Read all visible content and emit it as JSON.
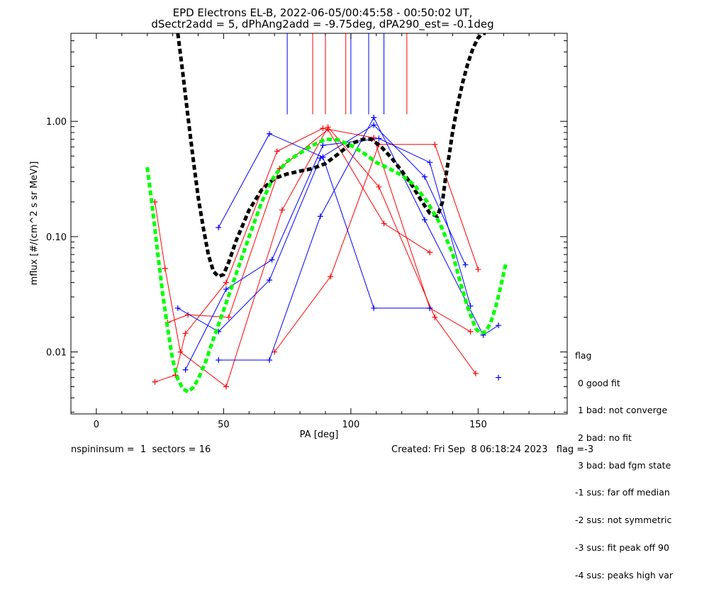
{
  "chart_data": {
    "type": "line",
    "title": "EPD Electrons EL-B, 2022-06-05/00:45:58 - 00:50:02 UT,",
    "subtitle": "dSectr2add = 5, dPhAng2add = -9.75deg, dPA290_est=  -0.1deg",
    "xlabel": "PA [deg]",
    "ylabel": "mflux [#/(cm^2 s sr MeV)]",
    "xlim": [
      -10,
      185
    ],
    "ylim": [
      0.0029,
      5.8
    ],
    "yscale": "log",
    "x_ticks": [
      0,
      50,
      100,
      150
    ],
    "x_tick_labels": [
      "0",
      "50",
      "100",
      "150"
    ],
    "y_ticks": [
      0.01,
      0.1,
      1.0
    ],
    "y_tick_labels": [
      "0.01",
      "0.10",
      "1.00"
    ],
    "grid": false,
    "colors": {
      "red": "#ff0000",
      "blue": "#0000ff",
      "black": "#000000",
      "green": "#00ff00"
    },
    "vertical_lines": {
      "top": 5.8,
      "bottom": 1.15,
      "red_x": [
        85,
        90,
        98,
        122
      ],
      "blue_x": [
        75,
        100,
        107,
        113
      ]
    },
    "series": [
      {
        "color": "red",
        "style": "solid",
        "marker": "plus",
        "x": [
          23,
          31,
          35,
          51,
          71,
          89,
          109,
          131,
          147
        ],
        "y": [
          0.0055,
          0.0063,
          0.0145,
          0.04,
          0.55,
          0.87,
          0.72,
          0.024,
          0.015
        ]
      },
      {
        "color": "red",
        "style": "solid",
        "marker": "plus",
        "x": [
          23,
          27,
          33,
          51,
          73,
          91,
          111,
          133,
          149
        ],
        "y": [
          0.2,
          0.053,
          0.01,
          0.005,
          0.17,
          0.89,
          0.27,
          0.02,
          0.0065
        ]
      },
      {
        "color": "red",
        "style": "solid",
        "marker": "plus",
        "x": [
          28,
          36,
          52,
          72,
          91,
          113,
          131
        ],
        "y": [
          0.018,
          0.021,
          0.02,
          0.39,
          0.85,
          0.13,
          0.073
        ]
      },
      {
        "color": "red",
        "style": "solid",
        "marker": "plus",
        "x": [
          70,
          92,
          111,
          133,
          150
        ],
        "y": [
          0.01,
          0.045,
          0.63,
          0.63,
          0.052
        ]
      },
      {
        "color": "blue",
        "style": "solid",
        "marker": "plus",
        "x": [
          48,
          68,
          89,
          109,
          131
        ],
        "y": [
          0.12,
          0.78,
          0.49,
          0.024,
          0.024
        ]
      },
      {
        "color": "blue",
        "style": "solid",
        "marker": "plus",
        "x": [
          32,
          48,
          68,
          88,
          109,
          129,
          145
        ],
        "y": [
          0.024,
          0.015,
          0.042,
          0.48,
          0.93,
          0.33,
          0.057
        ]
      },
      {
        "color": "blue",
        "style": "solid",
        "marker": "plus",
        "x": [
          35,
          51,
          69,
          89,
          111,
          131,
          147
        ],
        "y": [
          0.007,
          0.035,
          0.063,
          0.62,
          0.71,
          0.44,
          0.025
        ]
      },
      {
        "color": "blue",
        "style": "solid",
        "marker": "plus",
        "x": [
          48,
          68,
          88,
          109,
          129,
          152,
          158
        ],
        "y": [
          0.0085,
          0.0085,
          0.15,
          1.08,
          0.14,
          0.014,
          0.017
        ]
      },
      {
        "color": "blue",
        "style": "solid",
        "marker": "plus",
        "x": [
          158
        ],
        "y": [
          0.006
        ]
      },
      {
        "color": "black",
        "style": "dashed",
        "x": [
          32,
          34,
          36,
          38,
          40,
          42,
          44,
          46,
          48,
          50,
          52,
          55,
          60,
          65,
          70,
          75,
          80,
          85,
          90,
          95,
          100,
          105,
          108,
          112,
          116,
          120,
          124,
          128,
          131,
          134,
          136,
          137,
          139,
          140,
          142,
          144,
          146,
          148,
          150,
          152,
          153
        ],
        "y": [
          5.8,
          2.6,
          1.1,
          0.48,
          0.22,
          0.12,
          0.07,
          0.05,
          0.045,
          0.047,
          0.06,
          0.093,
          0.17,
          0.255,
          0.32,
          0.35,
          0.37,
          0.39,
          0.43,
          0.52,
          0.64,
          0.7,
          0.7,
          0.6,
          0.48,
          0.37,
          0.28,
          0.2,
          0.16,
          0.15,
          0.2,
          0.3,
          0.58,
          0.82,
          1.4,
          2.2,
          3.2,
          4.3,
          5.3,
          5.8,
          5.8
        ]
      },
      {
        "color": "green",
        "style": "dashed",
        "x": [
          20,
          22,
          24,
          26,
          28,
          30,
          32,
          34,
          36,
          38,
          40,
          43,
          46,
          50,
          55,
          60,
          65,
          70,
          75,
          80,
          85,
          90,
          95,
          100,
          105,
          110,
          115,
          120,
          125,
          130,
          135,
          140,
          143,
          146,
          149,
          151,
          153,
          155,
          157,
          159,
          161
        ],
        "y": [
          0.4,
          0.18,
          0.075,
          0.033,
          0.016,
          0.0085,
          0.0058,
          0.0048,
          0.0045,
          0.0049,
          0.0058,
          0.0083,
          0.013,
          0.023,
          0.048,
          0.1,
          0.2,
          0.34,
          0.45,
          0.53,
          0.62,
          0.7,
          0.69,
          0.62,
          0.53,
          0.44,
          0.39,
          0.34,
          0.28,
          0.2,
          0.13,
          0.071,
          0.04,
          0.024,
          0.016,
          0.0145,
          0.015,
          0.018,
          0.025,
          0.038,
          0.06
        ]
      }
    ]
  },
  "flag_legend": {
    "heading": "flag",
    "items": [
      " 0 good fit",
      " 1 bad: not converge",
      " 2 bad: no fit",
      " 3 bad: bad fgm state",
      "-1 sus: far off median",
      "-2 sus: not symmetric",
      "-3 sus: fit peak off 90",
      "-4 sus: peaks high var"
    ]
  },
  "footer": {
    "left": "nspininsum =  1  sectors = 16",
    "right": "Created: Fri Sep  8 06:18:24 2023   flag =-3"
  }
}
